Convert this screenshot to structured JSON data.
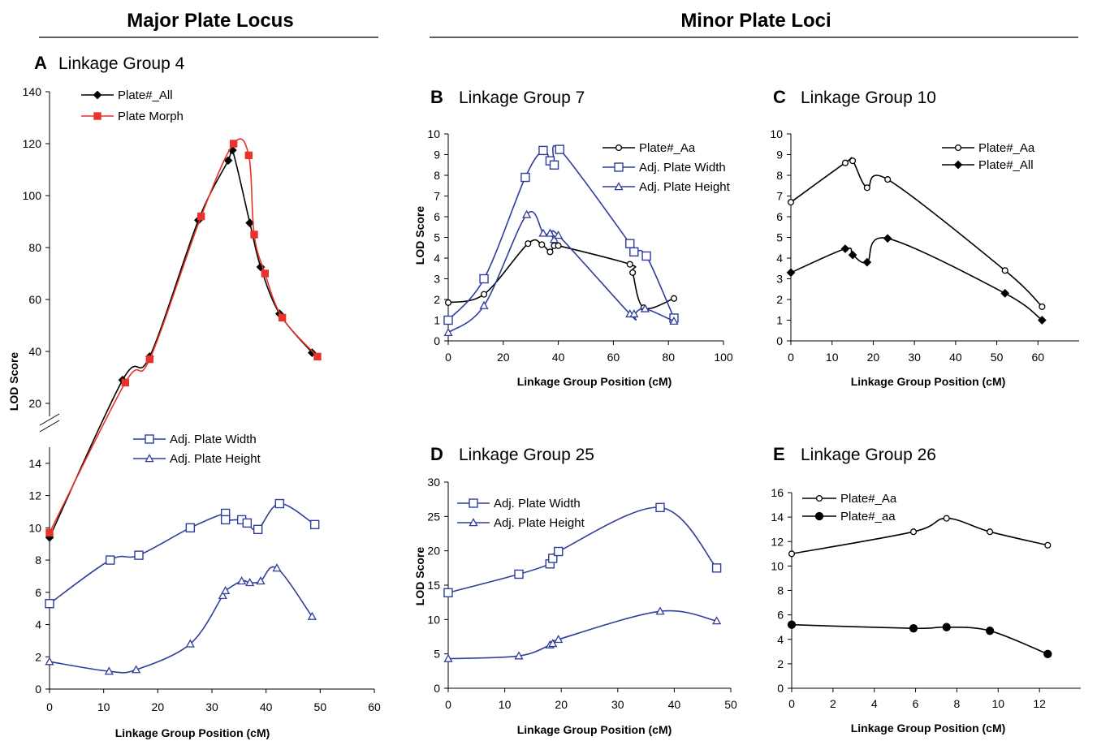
{
  "sections": {
    "major_title": "Major Plate Locus",
    "minor_title": "Minor Plate Loci"
  },
  "colors": {
    "black": "#000000",
    "red": "#e8332b",
    "blue": "#2f3e9a"
  },
  "chart_data": [
    {
      "id": "A",
      "letter": "A",
      "title": "Linkage Group 4",
      "type": "line",
      "xlabel": "Linkage Group Position (cM)",
      "ylabel": "LOD Score",
      "xlim": [
        0,
        60
      ],
      "xticks": [
        0,
        10,
        20,
        30,
        40,
        50,
        60
      ],
      "broken_axis": true,
      "lower_ylim": [
        0,
        15
      ],
      "lower_yticks": [
        0,
        2,
        4,
        6,
        8,
        10,
        12,
        14
      ],
      "upper_ylim": [
        15,
        140
      ],
      "upper_yticks": [
        20,
        40,
        60,
        80,
        100,
        120,
        140
      ],
      "series": [
        {
          "name": "Plate#_All",
          "color": "#000000",
          "marker": "diamond",
          "filled": true,
          "x": [
            0,
            13.5,
            18.5,
            27.5,
            33,
            33.8,
            37,
            39,
            42.5,
            48.5
          ],
          "y": [
            9.4,
            29,
            38,
            90.5,
            113.5,
            117.5,
            89.5,
            72.5,
            54.5,
            39.5
          ]
        },
        {
          "name": "Plate Morph",
          "color": "#e8332b",
          "marker": "square",
          "filled": true,
          "x": [
            0,
            14,
            18.5,
            28,
            34,
            36.8,
            37.8,
            39.8,
            43,
            49.5
          ],
          "y": [
            9.7,
            28,
            37,
            92,
            120,
            115.5,
            85,
            70,
            53,
            38
          ]
        },
        {
          "name": "Adj. Plate Width",
          "color": "#2f3e9a",
          "marker": "square",
          "filled": false,
          "x": [
            0,
            11.2,
            16.5,
            26,
            32.5,
            32.5,
            35.5,
            36.5,
            38.5,
            42.5,
            49
          ],
          "y": [
            5.3,
            8,
            8.3,
            10,
            10.9,
            10.5,
            10.5,
            10.3,
            9.9,
            11.5,
            10.2
          ]
        },
        {
          "name": "Adj. Plate Height",
          "color": "#2f3e9a",
          "marker": "triangle",
          "filled": false,
          "x": [
            0,
            11,
            16,
            26,
            32,
            32.5,
            35.5,
            37,
            39,
            42,
            48.5
          ],
          "y": [
            1.7,
            1.1,
            1.2,
            2.8,
            5.8,
            6.1,
            6.7,
            6.6,
            6.7,
            7.5,
            4.5
          ]
        }
      ],
      "legends": [
        {
          "entries": [
            "Plate#_All",
            "Plate Morph"
          ]
        },
        {
          "entries": [
            "Adj. Plate Width",
            "Adj. Plate Height"
          ]
        }
      ]
    },
    {
      "id": "B",
      "letter": "B",
      "title": "Linkage Group 7",
      "type": "line",
      "xlabel": "Linkage Group Position (cM)",
      "ylabel": "LOD Score",
      "xlim": [
        0,
        100
      ],
      "xticks": [
        0,
        20,
        40,
        60,
        80,
        100
      ],
      "ylim": [
        0,
        10
      ],
      "yticks": [
        0,
        1,
        2,
        3,
        4,
        5,
        6,
        7,
        8,
        9,
        10
      ],
      "series": [
        {
          "name": "Plate#_Aa",
          "color": "#000000",
          "marker": "circle",
          "filled": false,
          "x": [
            0,
            13,
            29,
            34,
            37,
            38.5,
            40,
            66,
            67,
            71,
            82
          ],
          "y": [
            1.85,
            2.25,
            4.7,
            4.65,
            4.3,
            4.6,
            4.6,
            3.7,
            3.3,
            1.6,
            2.05
          ]
        },
        {
          "name": "Adj. Plate Width",
          "color": "#2f3e9a",
          "marker": "square",
          "filled": false,
          "x": [
            0,
            13,
            28,
            34.5,
            37,
            38.5,
            40.5,
            66,
            67.5,
            72,
            82
          ],
          "y": [
            1,
            3,
            7.9,
            9.2,
            8.7,
            8.5,
            9.25,
            4.7,
            4.3,
            4.1,
            1.1
          ]
        },
        {
          "name": "Adj. Plate Height",
          "color": "#2f3e9a",
          "marker": "triangle",
          "filled": false,
          "x": [
            0,
            13,
            28.5,
            34.5,
            37,
            38.5,
            40,
            66,
            67.5,
            71.5,
            82
          ],
          "y": [
            0.4,
            1.7,
            6.1,
            5.2,
            5.2,
            4.9,
            5.1,
            1.3,
            1.3,
            1.55,
            0.95
          ]
        }
      ],
      "legends": [
        {
          "entries": [
            "Plate#_Aa",
            "Adj. Plate Width",
            "Adj. Plate Height"
          ]
        }
      ]
    },
    {
      "id": "C",
      "letter": "C",
      "title": "Linkage Group 10",
      "type": "line",
      "xlabel": "Linkage Group Position (cM)",
      "ylabel": "",
      "xlim": [
        0,
        70
      ],
      "xticks": [
        0,
        10,
        20,
        30,
        40,
        50,
        60
      ],
      "ylim": [
        0,
        10
      ],
      "yticks": [
        0,
        1,
        2,
        3,
        4,
        5,
        6,
        7,
        8,
        9,
        10
      ],
      "series": [
        {
          "name": "Plate#_Aa",
          "color": "#000000",
          "marker": "circle",
          "filled": false,
          "x": [
            0,
            13.2,
            15,
            18.5,
            23.5,
            52,
            61
          ],
          "y": [
            6.7,
            8.6,
            8.7,
            7.4,
            7.8,
            3.4,
            1.65
          ]
        },
        {
          "name": "Plate#_All",
          "color": "#000000",
          "marker": "diamond",
          "filled": true,
          "x": [
            0,
            13.2,
            15,
            18.5,
            23.5,
            52,
            61
          ],
          "y": [
            3.3,
            4.45,
            4.15,
            3.8,
            4.95,
            2.3,
            1
          ]
        }
      ],
      "legends": [
        {
          "entries": [
            "Plate#_Aa",
            "Plate#_All"
          ]
        }
      ]
    },
    {
      "id": "D",
      "letter": "D",
      "title": "Linkage Group 25",
      "type": "line",
      "xlabel": "Linkage Group Position (cM)",
      "ylabel": "LOD Score",
      "xlim": [
        0,
        50
      ],
      "xticks": [
        0,
        10,
        20,
        30,
        40,
        50
      ],
      "ylim": [
        0,
        30
      ],
      "yticks": [
        0,
        5,
        10,
        15,
        20,
        25,
        30
      ],
      "series": [
        {
          "name": "Adj. Plate Width",
          "color": "#2f3e9a",
          "marker": "square",
          "filled": false,
          "x": [
            0,
            12.5,
            18,
            18.5,
            19.5,
            37.5,
            47.5
          ],
          "y": [
            13.9,
            16.6,
            18.1,
            18.9,
            19.9,
            26.3,
            17.5
          ]
        },
        {
          "name": "Adj. Plate Height",
          "color": "#2f3e9a",
          "marker": "triangle",
          "filled": false,
          "x": [
            0,
            12.5,
            18,
            18.5,
            19.5,
            37.5,
            47.5
          ],
          "y": [
            4.3,
            4.7,
            6.3,
            6.5,
            7.1,
            11.2,
            9.8
          ]
        }
      ],
      "legends": [
        {
          "entries": [
            "Adj. Plate Width",
            "Adj. Plate Height"
          ]
        }
      ]
    },
    {
      "id": "E",
      "letter": "E",
      "title": "Linkage Group 26",
      "type": "line",
      "xlabel": "Linkage Group Position (cM)",
      "ylabel": "",
      "xlim": [
        0,
        14
      ],
      "xticks": [
        0,
        2,
        4,
        6,
        8,
        10,
        12
      ],
      "ylim": [
        0,
        16
      ],
      "yticks": [
        0,
        2,
        4,
        6,
        8,
        10,
        12,
        14,
        16
      ],
      "series": [
        {
          "name": "Plate#_Aa",
          "color": "#000000",
          "marker": "circle",
          "filled": false,
          "x": [
            0,
            5.9,
            7.5,
            9.6,
            12.4
          ],
          "y": [
            11,
            12.8,
            13.9,
            12.8,
            11.7
          ]
        },
        {
          "name": "Plate#_aa",
          "color": "#000000",
          "marker": "circle",
          "filled": true,
          "x": [
            0,
            5.9,
            7.5,
            9.6,
            12.4
          ],
          "y": [
            5.2,
            4.9,
            5,
            4.7,
            2.8
          ]
        }
      ],
      "legends": [
        {
          "entries": [
            "Plate#_Aa",
            "Plate#_aa"
          ]
        }
      ]
    }
  ]
}
